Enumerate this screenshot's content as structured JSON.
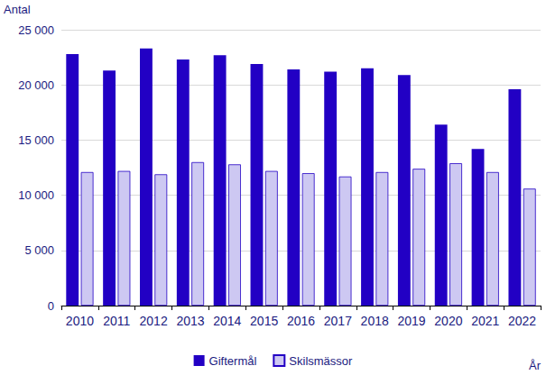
{
  "chart_data": {
    "type": "bar",
    "y_label": "Antal",
    "x_label": "År",
    "categories": [
      "2010",
      "2011",
      "2012",
      "2013",
      "2014",
      "2015",
      "2016",
      "2017",
      "2018",
      "2019",
      "2020",
      "2021",
      "2022"
    ],
    "series": [
      {
        "name": "Giftermål",
        "color": "#2200c4",
        "values": [
          22800,
          21300,
          23300,
          22300,
          22700,
          21900,
          21400,
          21200,
          21500,
          20900,
          16400,
          14200,
          19600
        ]
      },
      {
        "name": "Skilsmässor",
        "color": "#cdc8f2",
        "values": [
          12100,
          12200,
          11900,
          13000,
          12800,
          12200,
          12000,
          11700,
          12100,
          12400,
          12900,
          12100,
          10600
        ]
      }
    ],
    "ylim": [
      0,
      25000
    ],
    "yticks": [
      0,
      {
        "value": 5000,
        "label": "5 000"
      },
      {
        "value": 10000,
        "label": "10 000"
      },
      {
        "value": 15000,
        "label": "15 000"
      },
      {
        "value": 20000,
        "label": "20 000"
      },
      {
        "value": 25000,
        "label": "25 000"
      }
    ],
    "grid": true,
    "legend": "bottom"
  }
}
